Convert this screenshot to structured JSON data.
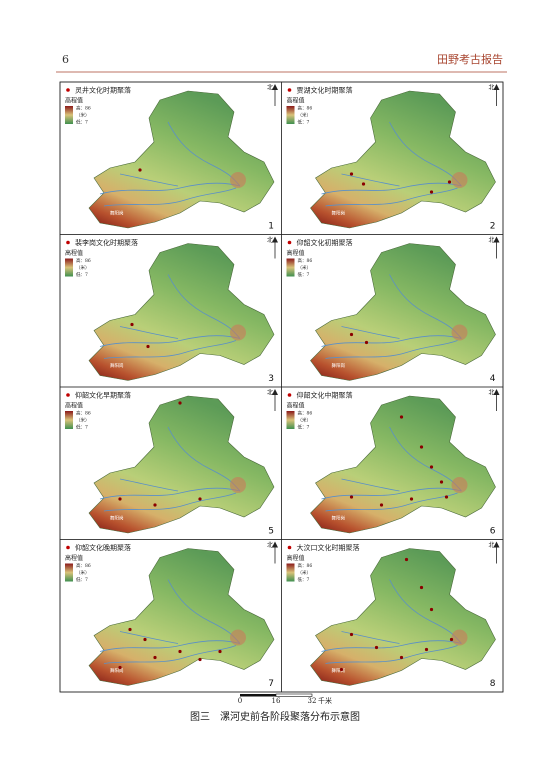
{
  "header": {
    "page_number": "6",
    "journal": "田野考古报告"
  },
  "panels": [
    {
      "number": "1",
      "title": "灵井文化时期聚落"
    },
    {
      "number": "2",
      "title": "贾湖文化时期聚落"
    },
    {
      "number": "3",
      "title": "裴李岗文化时期聚落"
    },
    {
      "number": "4",
      "title": "仰韶文化初期聚落"
    },
    {
      "number": "5",
      "title": "仰韶文化早期聚落"
    },
    {
      "number": "6",
      "title": "仰韶文化中期聚落"
    },
    {
      "number": "7",
      "title": "仰韶文化晚期聚落"
    },
    {
      "number": "8",
      "title": "大汶口文化时期聚落"
    }
  ],
  "legend": {
    "heading": "高程值",
    "high": "高：86",
    "unit": "（米）",
    "low": "低：7"
  },
  "north": "北",
  "map_label": "舞阳岗",
  "scale_bar": {
    "ticks": [
      "0",
      "16",
      "32"
    ],
    "unit": "千米"
  },
  "caption": "图三　漯河史前各阶段聚落分布示意图"
}
